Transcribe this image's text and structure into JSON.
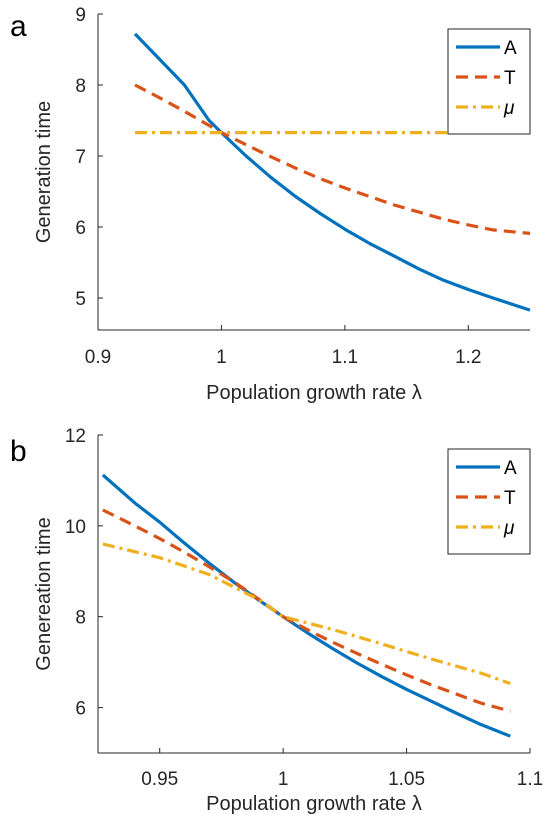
{
  "chart_data": [
    {
      "panel_label": "a",
      "type": "line",
      "xlabel": "Population growth rate λ",
      "ylabel": "Generation time",
      "xlim": [
        0.9,
        1.25
      ],
      "ylim": [
        4.55,
        9.0
      ],
      "xticks": [
        0.9,
        1,
        1.1,
        1.2
      ],
      "xtick_labels": [
        "0.9",
        "1",
        "1.1",
        "1.2"
      ],
      "yticks": [
        5,
        6,
        7,
        8,
        9
      ],
      "ytick_labels": [
        "5",
        "6",
        "7",
        "8",
        "9"
      ],
      "legend_position": "top-right",
      "grid": false,
      "series": [
        {
          "name": "A",
          "color": "#0072BD",
          "style": "solid",
          "x": [
            0.93,
            0.95,
            0.97,
            0.99,
            1.0,
            1.02,
            1.04,
            1.06,
            1.08,
            1.1,
            1.12,
            1.14,
            1.16,
            1.18,
            1.2,
            1.22,
            1.25
          ],
          "y": [
            8.72,
            8.36,
            8.0,
            7.5,
            7.33,
            7.0,
            6.7,
            6.43,
            6.19,
            5.97,
            5.77,
            5.59,
            5.41,
            5.25,
            5.12,
            5.0,
            4.83
          ]
        },
        {
          "name": "T",
          "color": "#D95319",
          "style": "dashed",
          "x": [
            0.93,
            0.95,
            0.97,
            0.99,
            1.0,
            1.02,
            1.04,
            1.06,
            1.08,
            1.1,
            1.12,
            1.14,
            1.16,
            1.18,
            1.2,
            1.22,
            1.25
          ],
          "y": [
            8.0,
            7.82,
            7.63,
            7.43,
            7.33,
            7.16,
            6.99,
            6.83,
            6.68,
            6.55,
            6.43,
            6.31,
            6.21,
            6.11,
            6.03,
            5.96,
            5.91
          ]
        },
        {
          "name": "μ",
          "color": "#EDB120",
          "style": "dashdot",
          "x": [
            0.93,
            1.25
          ],
          "y": [
            7.33,
            7.33
          ]
        }
      ]
    },
    {
      "panel_label": "b",
      "type": "line",
      "xlabel": "Population growth rate λ",
      "ylabel": "Genereation time",
      "xlim": [
        0.925,
        1.1
      ],
      "ylim": [
        5.0,
        12.0
      ],
      "xticks": [
        0.95,
        1,
        1.05,
        1.1
      ],
      "xtick_labels": [
        "0.95",
        "1",
        "1.05",
        "1.1"
      ],
      "yticks": [
        6,
        8,
        10,
        12
      ],
      "ytick_labels": [
        "6",
        "8",
        "10",
        "12"
      ],
      "legend_position": "top-right",
      "grid": false,
      "series": [
        {
          "name": "A",
          "color": "#0072BD",
          "style": "solid",
          "x": [
            0.927,
            0.94,
            0.95,
            0.96,
            0.97,
            0.98,
            0.99,
            1.0,
            1.01,
            1.02,
            1.03,
            1.04,
            1.05,
            1.06,
            1.07,
            1.08,
            1.092
          ],
          "y": [
            11.12,
            10.5,
            10.08,
            9.62,
            9.18,
            8.76,
            8.37,
            8.0,
            7.64,
            7.3,
            6.98,
            6.68,
            6.4,
            6.14,
            5.88,
            5.63,
            5.37
          ]
        },
        {
          "name": "T",
          "color": "#D95319",
          "style": "dashed",
          "x": [
            0.927,
            0.94,
            0.95,
            0.96,
            0.97,
            0.98,
            0.99,
            1.0,
            1.01,
            1.02,
            1.03,
            1.04,
            1.05,
            1.06,
            1.07,
            1.08,
            1.092
          ],
          "y": [
            10.35,
            10.0,
            9.72,
            9.42,
            9.1,
            8.77,
            8.39,
            8.0,
            7.71,
            7.44,
            7.19,
            6.95,
            6.72,
            6.5,
            6.3,
            6.1,
            5.92
          ]
        },
        {
          "name": "μ",
          "color": "#EDB120",
          "style": "dashdot",
          "x": [
            0.927,
            0.95,
            0.97,
            0.99,
            1.0,
            1.02,
            1.04,
            1.06,
            1.08,
            1.092
          ],
          "y": [
            9.6,
            9.3,
            8.93,
            8.38,
            8.0,
            7.72,
            7.4,
            7.07,
            6.76,
            6.53
          ]
        }
      ]
    }
  ]
}
